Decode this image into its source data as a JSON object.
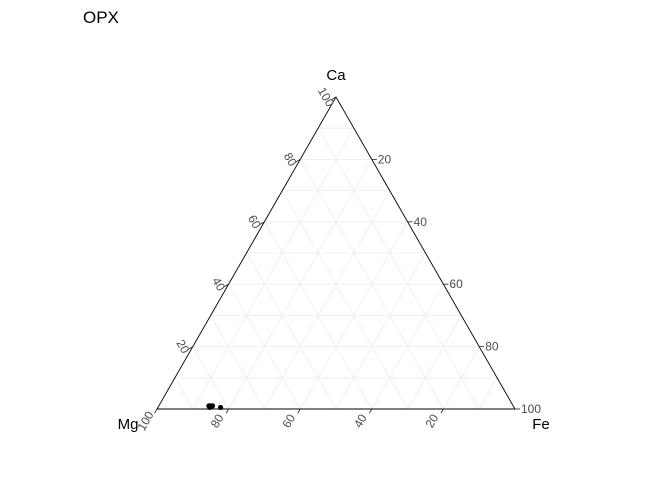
{
  "chart_data": {
    "type": "scatter",
    "subtype": "ternary",
    "title": "OPX",
    "vertices": {
      "top": "Ca",
      "left": "Mg",
      "right": "Fe"
    },
    "axis_ticks": {
      "Ca": [
        "20",
        "40",
        "60",
        "80",
        "100"
      ],
      "Fe": [
        "20",
        "40",
        "60",
        "80",
        "100"
      ],
      "Mg": [
        "20",
        "40",
        "60",
        "80",
        "100"
      ]
    },
    "grid": true,
    "grid_step": 10,
    "points": [
      {
        "Mg": 85,
        "Fe": 14,
        "Ca": 1
      },
      {
        "Mg": 84.5,
        "Fe": 14.5,
        "Ca": 1
      },
      {
        "Mg": 85,
        "Fe": 14.5,
        "Ca": 0.5
      },
      {
        "Mg": 84,
        "Fe": 15,
        "Ca": 1
      },
      {
        "Mg": 82,
        "Fe": 17.5,
        "Ca": 0.5
      }
    ],
    "point_color": "#000000"
  }
}
